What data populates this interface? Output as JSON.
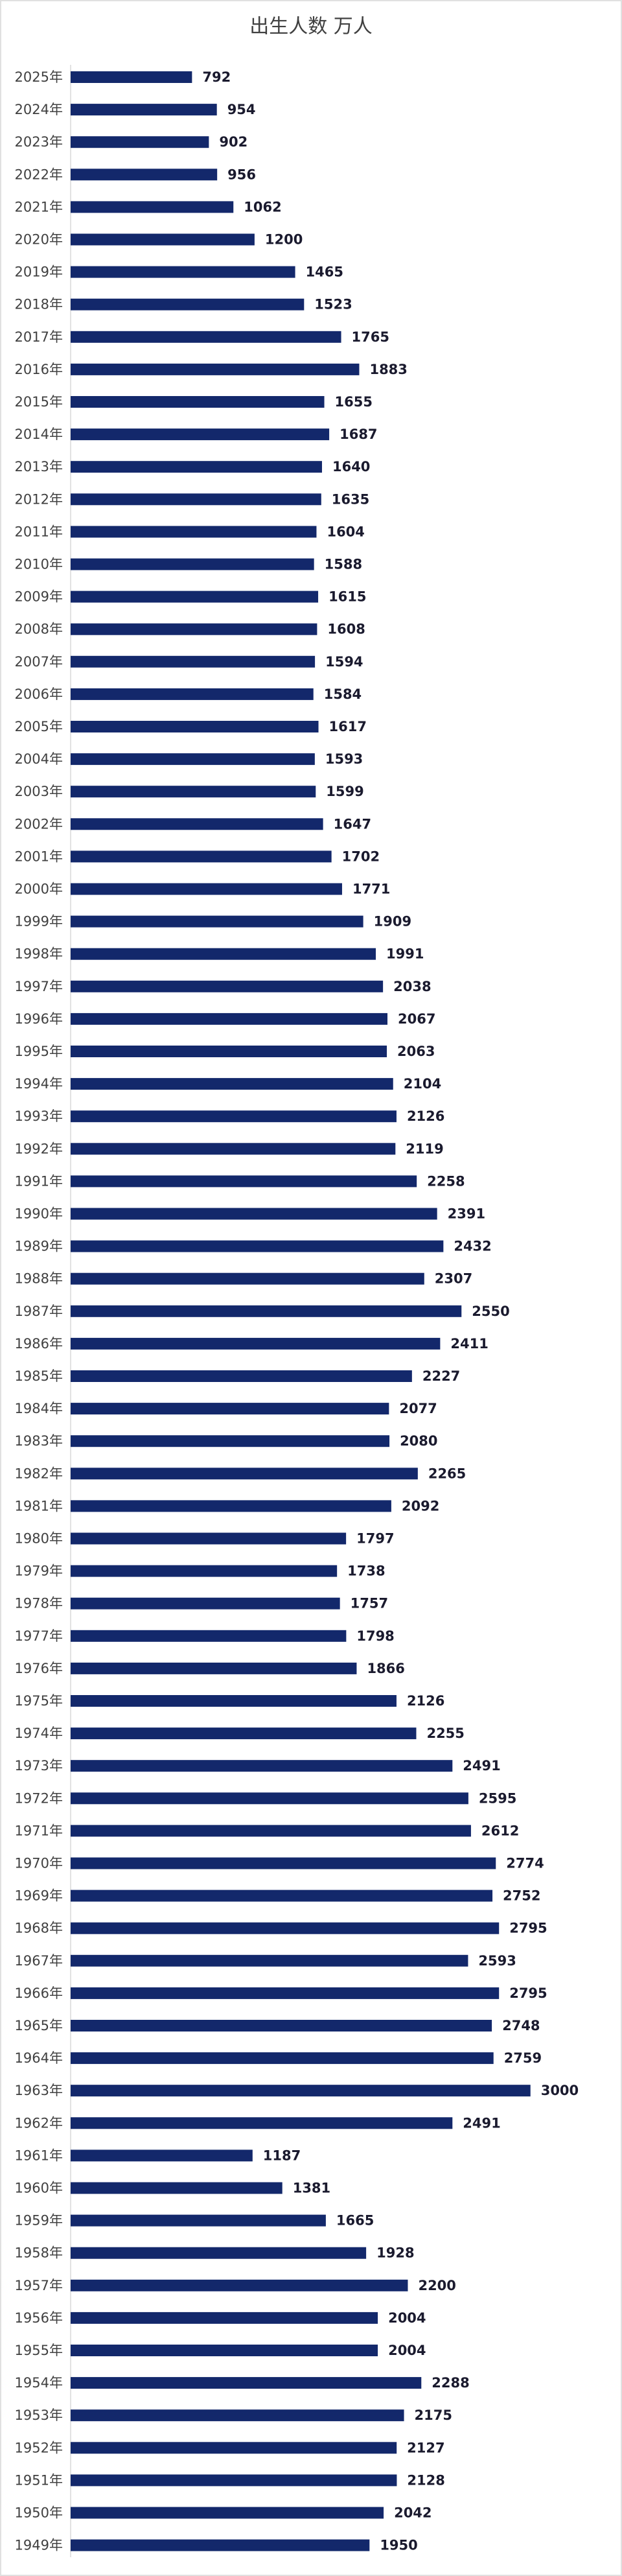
{
  "chart_data": {
    "type": "bar",
    "orientation": "horizontal",
    "title": "出生人数 万人",
    "categories": [
      "2025年",
      "2024年",
      "2023年",
      "2022年",
      "2021年",
      "2020年",
      "2019年",
      "2018年",
      "2017年",
      "2016年",
      "2015年",
      "2014年",
      "2013年",
      "2012年",
      "2011年",
      "2010年",
      "2009年",
      "2008年",
      "2007年",
      "2006年",
      "2005年",
      "2004年",
      "2003年",
      "2002年",
      "2001年",
      "2000年",
      "1999年",
      "1998年",
      "1997年",
      "1996年",
      "1995年",
      "1994年",
      "1993年",
      "1992年",
      "1991年",
      "1990年",
      "1989年",
      "1988年",
      "1987年",
      "1986年",
      "1985年",
      "1984年",
      "1983年",
      "1982年",
      "1981年",
      "1980年",
      "1979年",
      "1978年",
      "1977年",
      "1976年",
      "1975年",
      "1974年",
      "1973年",
      "1972年",
      "1971年",
      "1970年",
      "1969年",
      "1968年",
      "1967年",
      "1966年",
      "1965年",
      "1964年",
      "1963年",
      "1962年",
      "1961年",
      "1960年",
      "1959年",
      "1958年",
      "1957年",
      "1956年",
      "1955年",
      "1954年",
      "1953年",
      "1952年",
      "1951年",
      "1950年",
      "1949年"
    ],
    "values": [
      792,
      954,
      902,
      956,
      1062,
      1200,
      1465,
      1523,
      1765,
      1883,
      1655,
      1687,
      1640,
      1635,
      1604,
      1588,
      1615,
      1608,
      1594,
      1584,
      1617,
      1593,
      1599,
      1647,
      1702,
      1771,
      1909,
      1991,
      2038,
      2067,
      2063,
      2104,
      2126,
      2119,
      2258,
      2391,
      2432,
      2307,
      2550,
      2411,
      2227,
      2077,
      2080,
      2265,
      2092,
      1797,
      1738,
      1757,
      1798,
      1866,
      2126,
      2255,
      2491,
      2595,
      2612,
      2774,
      2752,
      2795,
      2593,
      2795,
      2748,
      2759,
      3000,
      2491,
      1187,
      1381,
      1665,
      1928,
      2200,
      2004,
      2004,
      2288,
      2175,
      2127,
      2128,
      2042,
      1950
    ],
    "color": "#13286b",
    "xlim": [
      0,
      3500
    ]
  }
}
